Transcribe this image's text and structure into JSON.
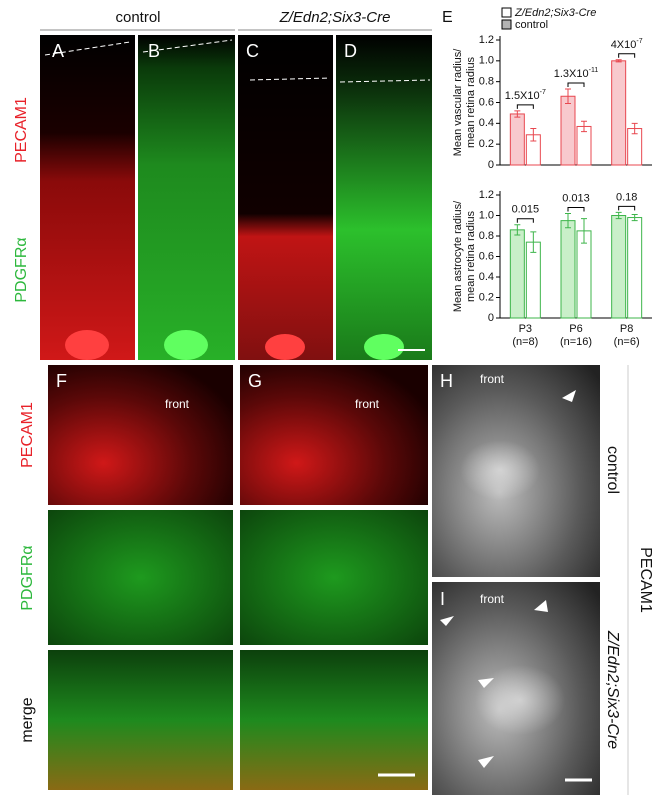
{
  "column_headers": {
    "control": "control",
    "mutant": "Z/Edn2;Six3-Cre"
  },
  "panel_letters": [
    "A",
    "B",
    "C",
    "D",
    "E",
    "F",
    "G",
    "H",
    "I"
  ],
  "row_labels": {
    "pecam1_top": "PECAM1",
    "pdgfra_top": "PDGFRα",
    "pecam1_bottom": "PECAM1",
    "pdgfra_bottom": "PDGFRα",
    "merge": "merge"
  },
  "front_labels": [
    "front",
    "front",
    "front",
    "front"
  ],
  "side_labels": {
    "control": "control",
    "mutant": "Z/Edn2;Six3-Cre",
    "marker": "PECAM1"
  },
  "chart_data": [
    {
      "type": "bar",
      "ylabel": [
        "Mean vascular radius/",
        "mean retina radius"
      ],
      "ylim": [
        0,
        1.2
      ],
      "yticks": [
        0,
        0.2,
        0.4,
        0.6,
        0.8,
        {
          "value": 1,
          "label": "1.0"
        },
        1.2
      ],
      "categories": [
        null,
        null,
        null
      ],
      "legend": true,
      "series": [
        {
          "name": "control",
          "color": "#f8c9cd",
          "edge": "#e8474f",
          "legend_color": "#b3b3b3",
          "values": [
            0.49,
            0.66,
            1.0
          ],
          "errors": [
            0.03,
            0.07,
            0.01
          ]
        },
        {
          "name": "Z/Edn2;Six3-Cre",
          "italic": true,
          "color": "#ffffff",
          "edge": "#e8474f",
          "legend_color": "#ffffff",
          "values": [
            0.29,
            0.37,
            0.35
          ],
          "errors": [
            0.06,
            0.05,
            0.05
          ]
        }
      ],
      "p_values": [
        {
          "text": "1.5X10",
          "sup": "-7"
        },
        {
          "text": "1.3X10",
          "sup": "-11"
        },
        {
          "text": "4X10",
          "sup": "-7"
        }
      ]
    },
    {
      "type": "bar",
      "ylabel": [
        "Mean astrocyte radius/",
        "mean retina radius"
      ],
      "ylim": [
        0,
        1.2
      ],
      "yticks": [
        0,
        0.2,
        0.4,
        0.6,
        0.8,
        {
          "value": 1,
          "label": "1.0"
        },
        1.2
      ],
      "categories": [
        "P3",
        "P6",
        "P8"
      ],
      "category_sublabels": [
        "(n=8)",
        "(n=16)",
        "(n=6)"
      ],
      "series": [
        {
          "color": "#c9efc9",
          "edge": "#3db54a",
          "values": [
            0.86,
            0.95,
            1.0
          ],
          "errors": [
            0.05,
            0.07,
            0.03
          ]
        },
        {
          "color": "#ffffff",
          "edge": "#3db54a",
          "values": [
            0.74,
            0.85,
            0.98
          ],
          "errors": [
            0.1,
            0.12,
            0.03
          ]
        }
      ],
      "p_values": [
        {
          "text": "0.015"
        },
        {
          "text": "0.013"
        },
        {
          "text": "0.18"
        }
      ]
    }
  ]
}
